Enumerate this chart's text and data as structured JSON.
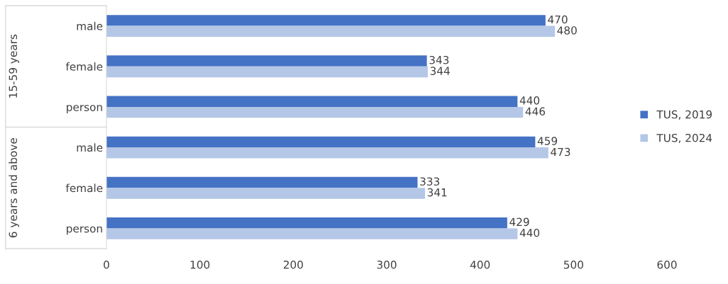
{
  "chart_data": {
    "type": "bar",
    "orientation": "horizontal",
    "categories": [
      "male",
      "female",
      "person",
      "male",
      "female",
      "person"
    ],
    "series": [
      {
        "name": "TUS, 2019",
        "color": "#4472c4",
        "values": [
          470,
          343,
          440,
          459,
          333,
          429
        ]
      },
      {
        "name": "TUS, 2024",
        "color": "#b4c7e7",
        "values": [
          480,
          344,
          446,
          473,
          341,
          440
        ]
      }
    ],
    "xlim": [
      0,
      600
    ],
    "xticks": [
      0,
      100,
      200,
      300,
      400,
      500,
      600
    ],
    "data_labels": true,
    "grid": false,
    "legend": "right",
    "annotations": [
      "15-59 years",
      "6 years and above"
    ]
  }
}
